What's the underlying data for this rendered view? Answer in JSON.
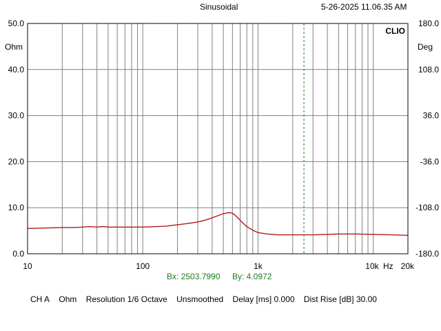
{
  "header": {
    "mode": "Sinusoidal",
    "timestamp": "5-26-2025 11.06.35 AM"
  },
  "brand": "CLIO",
  "cursor": {
    "bx_label": "Bx: 2503.7990",
    "by_label": "By: 4.0972",
    "x": 2503.799,
    "color": "#1f7a1f"
  },
  "status": {
    "channel": "CH A",
    "unit": "Ohm",
    "resolution": "Resolution 1/6 Octave",
    "smoothing": "Unsmoothed",
    "delay": "Delay [ms] 0.000",
    "dist_rise": "Dist Rise [dB] 30.00"
  },
  "chart_data": {
    "type": "line",
    "x_scale": "log",
    "xlim": [
      10,
      20000
    ],
    "ylim": [
      0,
      50
    ],
    "y2lim": [
      -180,
      180
    ],
    "ylabel": "Ohm",
    "y2label": "Deg",
    "xlabel": "Hz",
    "grid": true,
    "x_tick_labels": [
      {
        "value": 10,
        "label": "10"
      },
      {
        "value": 100,
        "label": "100"
      },
      {
        "value": 1000,
        "label": "1k"
      },
      {
        "value": 10000,
        "label": "10k"
      },
      {
        "value": 20000,
        "label": "20k"
      }
    ],
    "y_tick_labels": [
      "0.0",
      "10.0",
      "20.0",
      "30.0",
      "40.0",
      "50.0"
    ],
    "y_tick_values": [
      0,
      10,
      20,
      30,
      40,
      50
    ],
    "y2_tick_labels": [
      "-180.0",
      "-108.0",
      "-36.0",
      "36.0",
      "108.0",
      "180.0"
    ],
    "y2_tick_values": [
      -180,
      -108,
      -36,
      36,
      108,
      180
    ],
    "colors": {
      "curve": "#b01818",
      "grid": "#808080",
      "frame": "#000000"
    },
    "series": [
      {
        "x": [
          10,
          15,
          20,
          25,
          30,
          35,
          40,
          45,
          50,
          60,
          80,
          100,
          130,
          160,
          200,
          250,
          300,
          350,
          400,
          450,
          500,
          550,
          580,
          600,
          630,
          680,
          730,
          800,
          900,
          1000,
          1200,
          1500,
          2000,
          3000,
          4000,
          5000,
          7000,
          10000,
          15000,
          20000
        ],
        "y": [
          5.5,
          5.6,
          5.7,
          5.7,
          5.8,
          5.9,
          5.8,
          5.9,
          5.8,
          5.8,
          5.8,
          5.8,
          5.9,
          6.0,
          6.3,
          6.6,
          6.9,
          7.3,
          7.8,
          8.3,
          8.7,
          8.9,
          8.9,
          8.8,
          8.4,
          7.6,
          6.8,
          5.9,
          5.1,
          4.6,
          4.3,
          4.1,
          4.1,
          4.1,
          4.2,
          4.3,
          4.3,
          4.2,
          4.1,
          4.0
        ]
      }
    ]
  }
}
